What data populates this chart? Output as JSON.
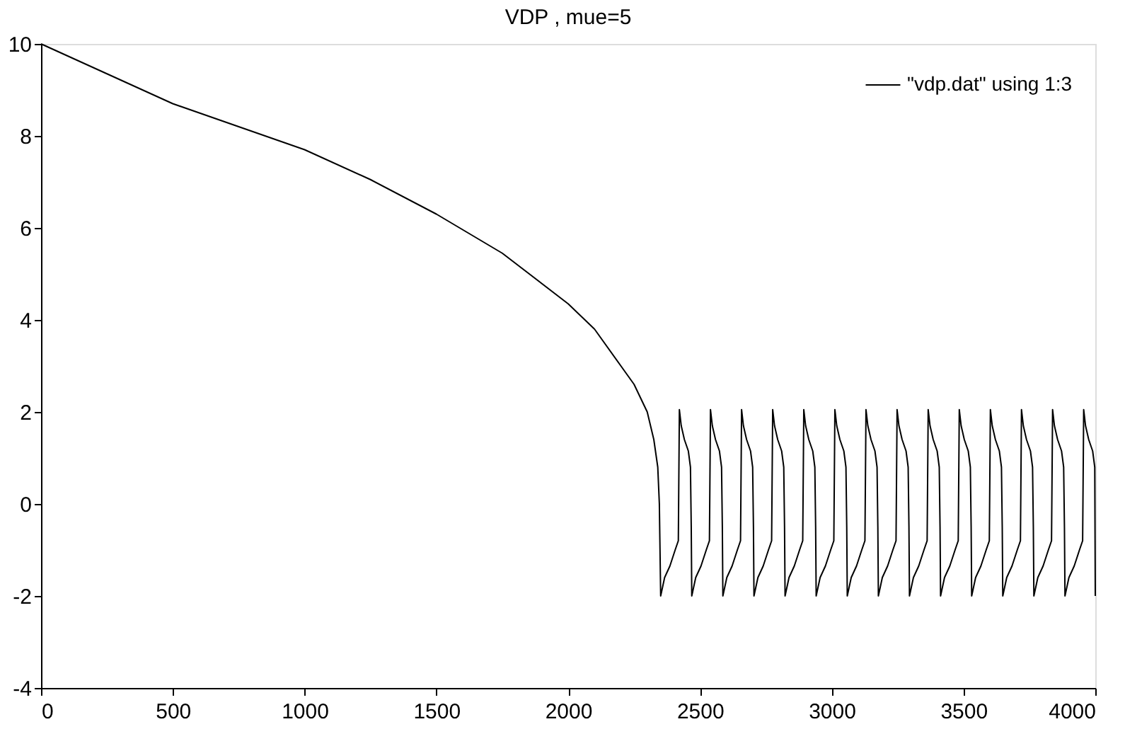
{
  "chart_data": {
    "type": "line",
    "title": "VDP , mue=5",
    "xlim": [
      0,
      4000
    ],
    "xticks": [
      0,
      500,
      1000,
      1500,
      2000,
      2500,
      3000,
      3500,
      4000
    ],
    "ylim": [
      -4,
      10
    ],
    "yticks": [
      -4,
      -2,
      0,
      2,
      4,
      6,
      8,
      10
    ],
    "grid": false,
    "legend": "top right",
    "line_style": "solid",
    "series": [
      {
        "name": "\"vdp.dat\" using 1:3",
        "color": "#000000",
        "x": [
          0,
          250,
          500,
          750,
          1000,
          1250,
          1500,
          1750,
          2000,
          2100,
          2200,
          2250,
          2300,
          2325,
          2340,
          2346,
          2351,
          2366,
          2386,
          2406,
          2418,
          2422,
          2429,
          2441,
          2456,
          2464,
          2467,
          2469,
          2484,
          2504,
          2524,
          2536,
          2540,
          2547,
          2559,
          2574,
          2582,
          2585,
          2587,
          2602,
          2622,
          2642,
          2654,
          2658,
          2665,
          2677,
          2692,
          2700,
          2703,
          2705,
          2720,
          2740,
          2760,
          2772,
          2776,
          2783,
          2795,
          2810,
          2818,
          2821,
          2823,
          2838,
          2858,
          2878,
          2890,
          2894,
          2901,
          2913,
          2928,
          2936,
          2939,
          2941,
          2956,
          2976,
          2996,
          3008,
          3012,
          3019,
          3031,
          3046,
          3054,
          3057,
          3059,
          3074,
          3094,
          3114,
          3126,
          3130,
          3137,
          3149,
          3164,
          3172,
          3175,
          3177,
          3192,
          3212,
          3232,
          3244,
          3248,
          3255,
          3267,
          3282,
          3290,
          3293,
          3295,
          3310,
          3330,
          3350,
          3362,
          3366,
          3373,
          3385,
          3400,
          3408,
          3411,
          3413,
          3428,
          3448,
          3468,
          3480,
          3484,
          3491,
          3503,
          3518,
          3526,
          3529,
          3531,
          3546,
          3566,
          3586,
          3598,
          3602,
          3609,
          3621,
          3636,
          3644,
          3647,
          3649,
          3664,
          3684,
          3704,
          3716,
          3720,
          3727,
          3739,
          3754,
          3762,
          3765,
          3767,
          3782,
          3802,
          3822,
          3834,
          3838,
          3845,
          3857,
          3872,
          3880,
          3883,
          3885,
          3900,
          3920,
          3940,
          3952,
          3956,
          3963,
          3975,
          3990,
          3998,
          4000
        ],
        "values": [
          10,
          9.35,
          8.7,
          8.2,
          7.7,
          7.05,
          6.3,
          5.45,
          4.35,
          3.8,
          3.0,
          2.6,
          2.0,
          1.4,
          0.8,
          0,
          -2.0,
          -1.6,
          -1.35,
          -1.0,
          -0.8,
          2.05,
          1.7,
          1.4,
          1.15,
          0.8,
          -0.5,
          -2.0,
          -1.6,
          -1.35,
          -1.0,
          -0.8,
          2.05,
          1.7,
          1.4,
          1.15,
          0.8,
          -0.5,
          -2.0,
          -1.6,
          -1.35,
          -1.0,
          -0.8,
          2.05,
          1.7,
          1.4,
          1.15,
          0.8,
          -0.5,
          -2.0,
          -1.6,
          -1.35,
          -1.0,
          -0.8,
          2.05,
          1.7,
          1.4,
          1.15,
          0.8,
          -0.5,
          -2.0,
          -1.6,
          -1.35,
          -1.0,
          -0.8,
          2.05,
          1.7,
          1.4,
          1.15,
          0.8,
          -0.5,
          -2.0,
          -1.6,
          -1.35,
          -1.0,
          -0.8,
          2.05,
          1.7,
          1.4,
          1.15,
          0.8,
          -0.5,
          -2.0,
          -1.6,
          -1.35,
          -1.0,
          -0.8,
          2.05,
          1.7,
          1.4,
          1.15,
          0.8,
          -0.5,
          -2.0,
          -1.6,
          -1.35,
          -1.0,
          -0.8,
          2.05,
          1.7,
          1.4,
          1.15,
          0.8,
          -0.5,
          -2.0,
          -1.6,
          -1.35,
          -1.0,
          -0.8,
          2.05,
          1.7,
          1.4,
          1.15,
          0.8,
          -0.5,
          -2.0,
          -1.6,
          -1.35,
          -1.0,
          -0.8,
          2.05,
          1.7,
          1.4,
          1.15,
          0.8,
          -0.5,
          -2.0,
          -1.6,
          -1.35,
          -1.0,
          -0.8,
          2.05,
          1.7,
          1.4,
          1.15,
          0.8,
          -0.5,
          -2.0,
          -1.6,
          -1.35,
          -1.0,
          -0.8,
          2.05,
          1.7,
          1.4,
          1.15,
          0.8,
          -0.5,
          -2.0,
          -1.6,
          -1.35,
          -1.0,
          -0.8,
          2.05,
          1.7,
          1.4,
          1.15,
          0.8,
          -0.5,
          -2.0,
          -1.6,
          -1.35,
          -1.0,
          -0.8,
          2.05,
          1.7,
          1.4,
          1.15,
          0.8,
          -2.0
        ]
      }
    ]
  }
}
